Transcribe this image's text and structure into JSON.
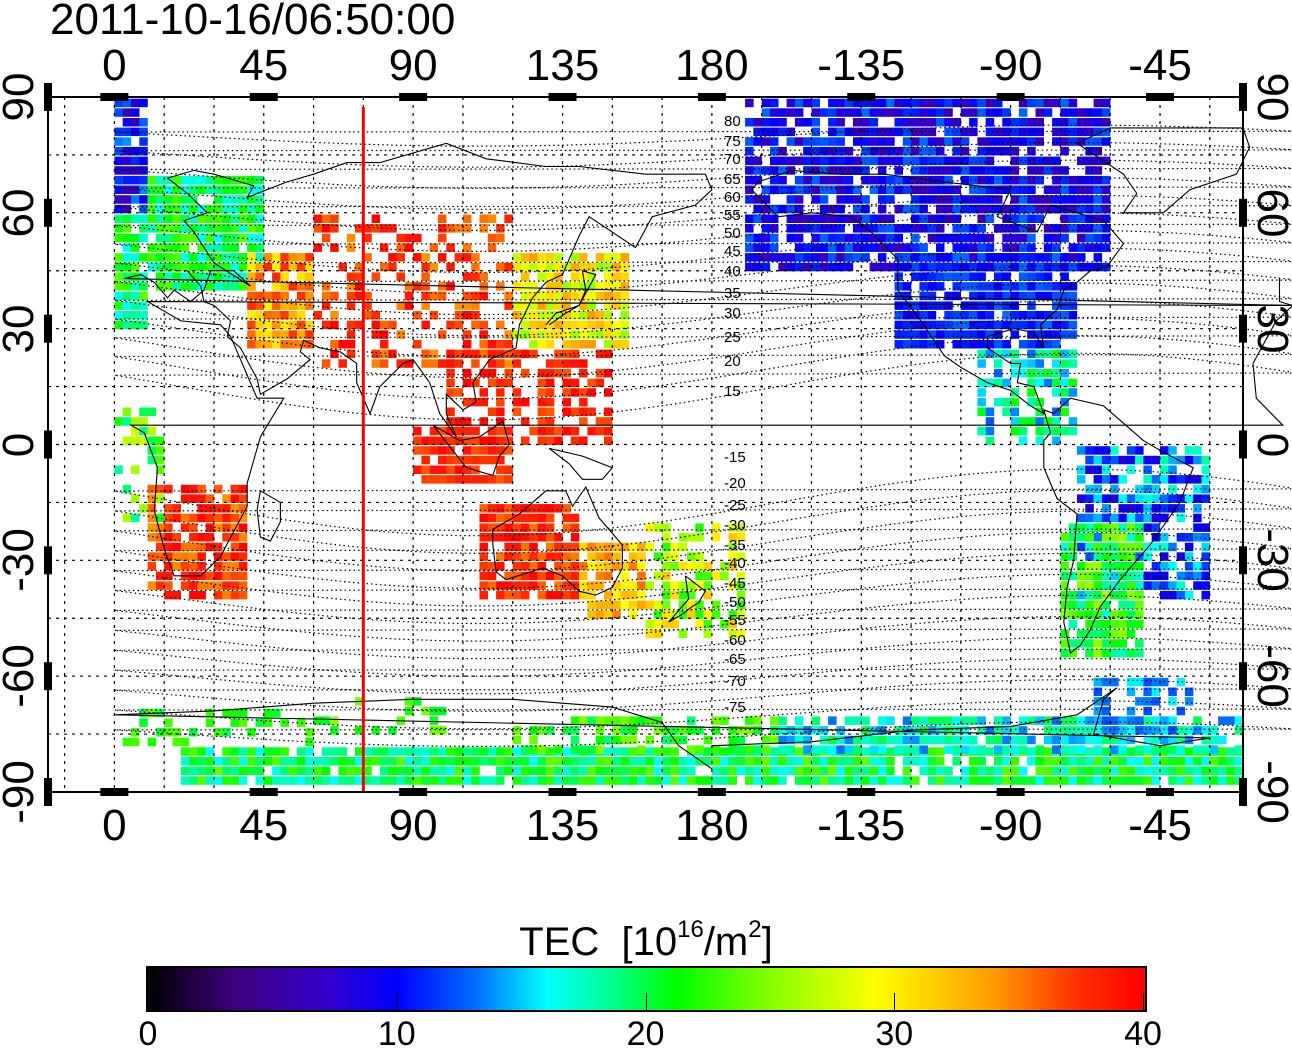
{
  "timestamp": "2011-10-16/06:50:00",
  "x_ticks": [
    "0",
    "45",
    "90",
    "135",
    "180",
    "-135",
    "-90",
    "-45"
  ],
  "y_ticks": [
    "90",
    "60",
    "30",
    "0",
    "-30",
    "-60",
    "-90"
  ],
  "contour_labels": [
    "80",
    "75",
    "70",
    "65",
    "60",
    "55",
    "50",
    "45",
    "40",
    "35",
    "30",
    "25",
    "20",
    "15",
    "-15",
    "-20",
    "-25",
    "-30",
    "-35",
    "-40",
    "-45",
    "-50",
    "-55",
    "-60",
    "-65",
    "-70",
    "-75"
  ],
  "meridian_longitude": 75,
  "colorbar": {
    "label": "TEC",
    "unit_base": "[10",
    "unit_exp": "16",
    "unit_mid": "/m",
    "unit_exp2": "2",
    "unit_end": "]",
    "ticks": [
      "0",
      "10",
      "20",
      "30",
      "40"
    ],
    "min": 0,
    "max": 40
  },
  "colors": {
    "red": "#ff0000",
    "high": "#ff2000",
    "mid": "#00ff60",
    "low": "#2010c0"
  }
}
